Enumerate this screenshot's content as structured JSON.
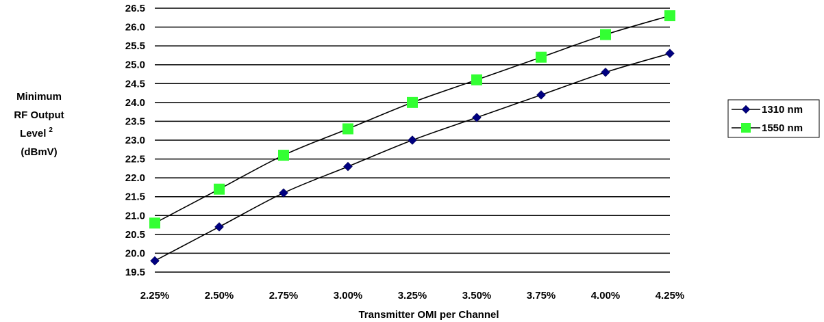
{
  "chart_data": {
    "type": "line",
    "xlabel": "Transmitter OMI per Channel",
    "ylabel_lines": [
      "Minimum",
      "RF Output",
      "Level",
      "(dBmV)"
    ],
    "ylabel_superscript": "2",
    "categories": [
      "2.25%",
      "2.50%",
      "2.75%",
      "3.00%",
      "3.25%",
      "3.50%",
      "3.75%",
      "4.00%",
      "4.25%"
    ],
    "x": [
      2.25,
      2.5,
      2.75,
      3.0,
      3.25,
      3.5,
      3.75,
      4.0,
      4.25
    ],
    "ylim": [
      19.5,
      26.5
    ],
    "ytick_step": 0.5,
    "grid": "horizontal",
    "legend_position": "right",
    "series": [
      {
        "name": "1310 nm",
        "marker": "diamond",
        "color": "#000080",
        "values": [
          19.8,
          20.7,
          21.6,
          22.3,
          23.0,
          23.6,
          24.2,
          24.8,
          25.3
        ]
      },
      {
        "name": "1550 nm",
        "marker": "square",
        "color": "#33FF33",
        "values": [
          20.8,
          21.7,
          22.6,
          23.3,
          24.0,
          24.6,
          25.2,
          25.8,
          26.3
        ]
      }
    ]
  }
}
